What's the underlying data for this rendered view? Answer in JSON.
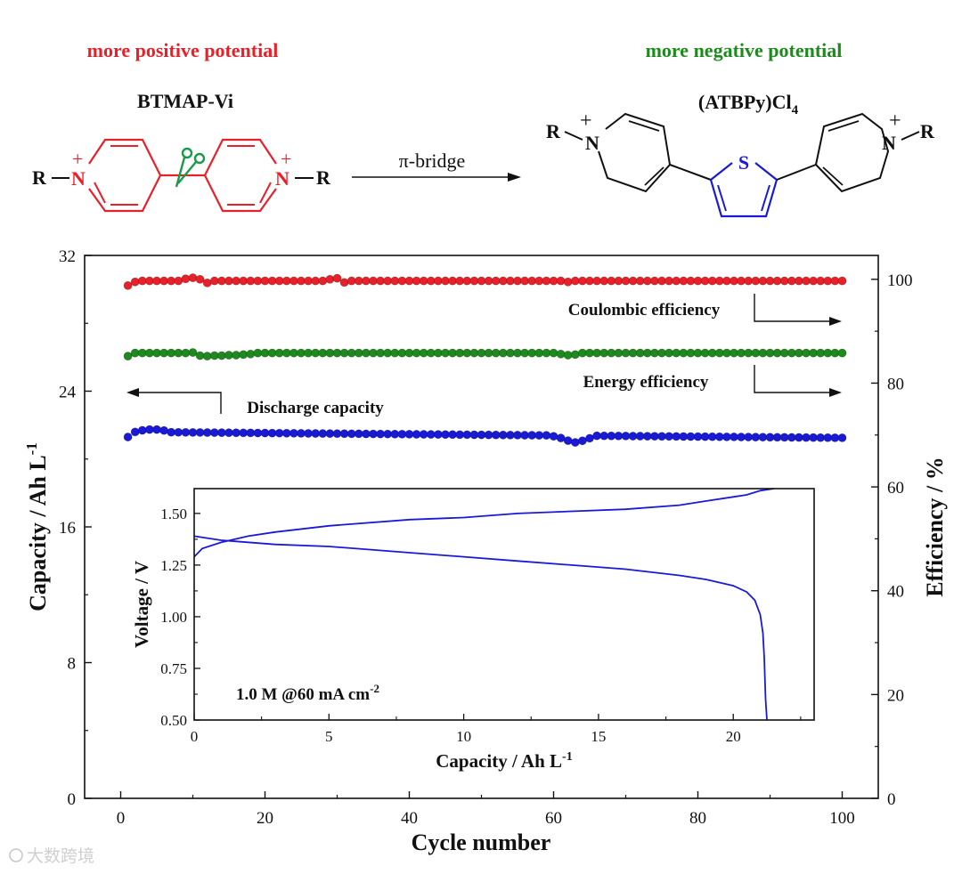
{
  "header": {
    "left_caption": "more positive potential",
    "right_caption": "more negative potential",
    "left_molecule": "BTMAP-Vi",
    "right_molecule_main": "(ATBPy)Cl",
    "right_molecule_sub": "4",
    "arrow_label": "π-bridge",
    "r_group": "R",
    "nitrogen": "N",
    "sulfur": "S",
    "plus": "+"
  },
  "colors": {
    "red": "#e8202a",
    "green": "#1e8a1e",
    "blue": "#1a1ad6",
    "black": "#111111"
  },
  "watermark": "大数跨境",
  "chart_data": [
    {
      "type": "scatter",
      "xlabel": "Cycle number",
      "ylabel_left": "Capacity / Ah L-1",
      "ylabel_left_main": "Capacity / Ah L",
      "ylabel_left_sup": "-1",
      "ylabel_right": "Efficiency / %",
      "xlim": [
        -5,
        105
      ],
      "ylim_left": [
        0,
        32
      ],
      "ylim_right": [
        0,
        104.6
      ],
      "x_ticks": [
        "0",
        "20",
        "40",
        "60",
        "80",
        "100"
      ],
      "x_tick_values": [
        0,
        20,
        40,
        60,
        80,
        100
      ],
      "y_left_ticks": [
        "0",
        "8",
        "16",
        "24",
        "32"
      ],
      "y_left_tick_values": [
        0,
        8,
        16,
        24,
        32
      ],
      "y_right_ticks": [
        "0",
        "20",
        "40",
        "60",
        "80",
        "100"
      ],
      "y_right_tick_values": [
        0,
        20,
        40,
        60,
        80,
        100
      ],
      "annotations": {
        "coulombic": "Coulombic efficiency",
        "energy": "Energy efficiency",
        "discharge": "Discharge capacity"
      },
      "series": [
        {
          "name": "Coulombic efficiency",
          "axis": "right",
          "color": "#e8202a",
          "n": 100,
          "base": 99.7,
          "bumps": [
            [
              1,
              -0.9
            ],
            [
              2,
              -0.2
            ],
            [
              9,
              0.4
            ],
            [
              10,
              0.6
            ],
            [
              11,
              0.3
            ],
            [
              12,
              -0.4
            ],
            [
              29,
              0.3
            ],
            [
              30,
              0.5
            ],
            [
              31,
              -0.3
            ],
            [
              62,
              -0.2
            ]
          ]
        },
        {
          "name": "Energy efficiency",
          "axis": "right",
          "color": "#1e8a1e",
          "n": 100,
          "base": 85.8,
          "bumps": [
            [
              1,
              -0.6
            ],
            [
              10,
              0.1
            ],
            [
              11,
              -0.5
            ],
            [
              12,
              -0.6
            ],
            [
              13,
              -0.5
            ],
            [
              14,
              -0.5
            ],
            [
              15,
              -0.4
            ],
            [
              16,
              -0.4
            ],
            [
              17,
              -0.3
            ],
            [
              18,
              -0.2
            ],
            [
              61,
              -0.2
            ],
            [
              62,
              -0.4
            ],
            [
              63,
              -0.3
            ]
          ]
        },
        {
          "name": "Discharge capacity",
          "axis": "left",
          "color": "#1a1ad6",
          "n": 100,
          "base": 21.6,
          "start": 21.6,
          "end": 21.25,
          "bumps": [
            [
              1,
              -0.3
            ],
            [
              2,
              0.0
            ],
            [
              3,
              0.1
            ],
            [
              4,
              0.15
            ],
            [
              5,
              0.15
            ],
            [
              6,
              0.1
            ],
            [
              60,
              -0.05
            ],
            [
              61,
              -0.15
            ],
            [
              62,
              -0.3
            ],
            [
              63,
              -0.4
            ],
            [
              64,
              -0.3
            ],
            [
              65,
              -0.15
            ]
          ]
        }
      ]
    },
    {
      "type": "line",
      "title": "1.0 M @60 mA cm-2",
      "title_main": "1.0 M @60 mA cm",
      "title_sup": "-2",
      "xlabel": "Capacity / Ah L-1",
      "xlabel_main": "Capacity / Ah L",
      "xlabel_sup": "-1",
      "ylabel": "Voltage / V",
      "xlim": [
        0,
        23
      ],
      "ylim": [
        0.5,
        1.62
      ],
      "x_ticks": [
        "0",
        "5",
        "10",
        "15",
        "20"
      ],
      "x_tick_values": [
        0,
        5,
        10,
        15,
        20
      ],
      "y_ticks": [
        "0.50",
        "0.75",
        "1.00",
        "1.25",
        "1.50"
      ],
      "y_tick_values": [
        0.5,
        0.75,
        1.0,
        1.25,
        1.5
      ],
      "series": [
        {
          "name": "charge",
          "x": [
            0,
            0.3,
            1,
            2,
            3,
            5,
            8,
            10,
            12,
            14,
            16,
            18,
            19,
            20,
            20.5,
            21,
            21.5
          ],
          "y": [
            1.29,
            1.33,
            1.36,
            1.39,
            1.41,
            1.44,
            1.47,
            1.48,
            1.5,
            1.51,
            1.52,
            1.54,
            1.56,
            1.58,
            1.59,
            1.61,
            1.62
          ]
        },
        {
          "name": "discharge",
          "x": [
            0,
            1,
            3,
            5,
            8,
            10,
            12,
            14,
            16,
            18,
            19,
            20,
            20.5,
            20.8,
            21.0,
            21.1,
            21.15,
            21.2,
            21.25
          ],
          "y": [
            1.39,
            1.37,
            1.35,
            1.34,
            1.31,
            1.29,
            1.27,
            1.25,
            1.23,
            1.2,
            1.18,
            1.15,
            1.12,
            1.08,
            1.01,
            0.92,
            0.8,
            0.6,
            0.5
          ]
        }
      ]
    }
  ]
}
